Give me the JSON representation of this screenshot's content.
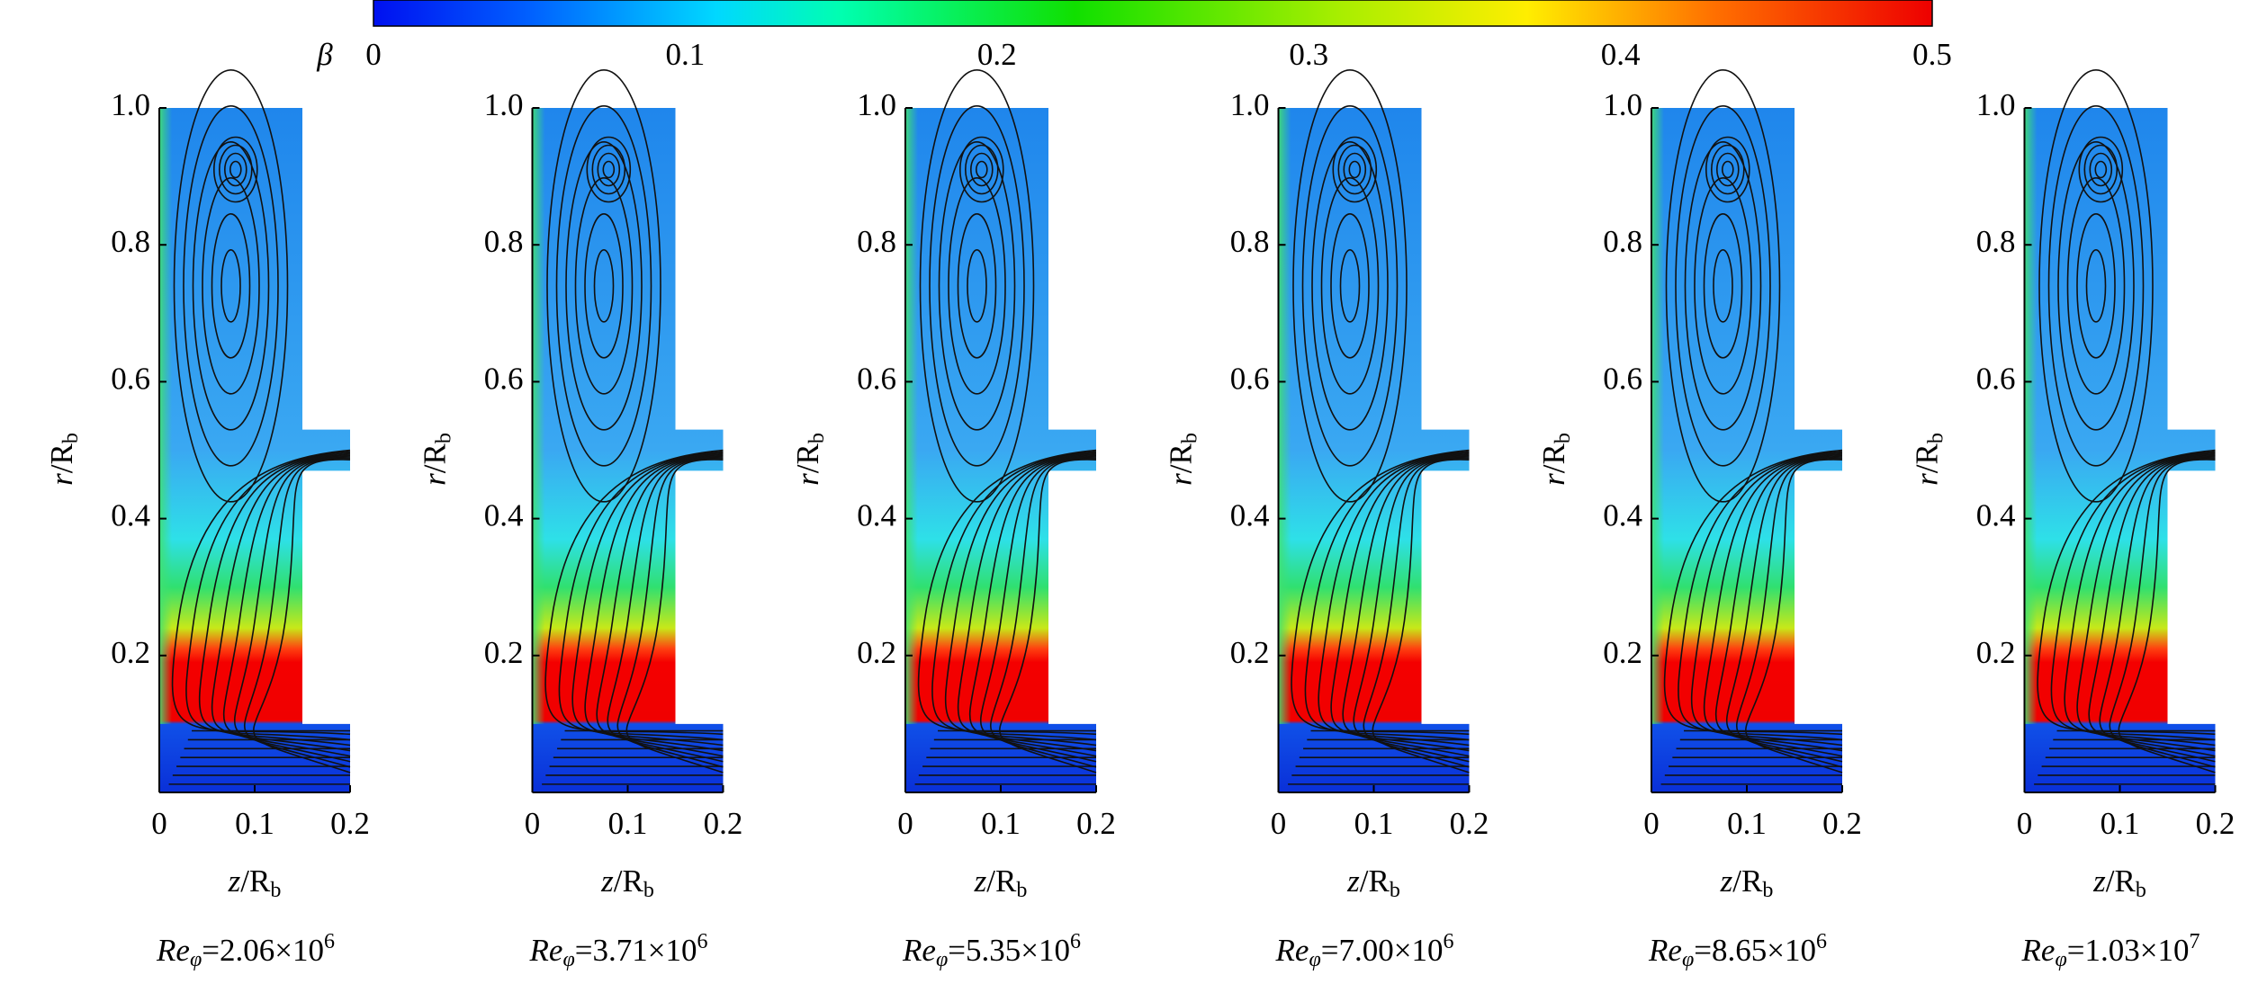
{
  "colorbar": {
    "label": "β",
    "lim": [
      0,
      0.5
    ],
    "ticks": [
      0,
      0.1,
      0.2,
      0.3,
      0.4,
      0.5
    ]
  },
  "chart_data": [
    {
      "type": "contour",
      "xlim": [
        0,
        0.2
      ],
      "ylim": [
        0,
        1
      ],
      "xticks": [
        0,
        0.1,
        0.2
      ],
      "yticks": [
        0.2,
        0.4,
        0.6,
        0.8,
        {
          "value": 1,
          "label": "1.0"
        }
      ],
      "xlabel": [
        "z",
        "/R",
        "b"
      ],
      "ylabel": [
        "r",
        "/R",
        "b"
      ],
      "caption": [
        "Re",
        "φ",
        "=2.06×10",
        "6"
      ]
    },
    {
      "type": "contour",
      "xlim": [
        0,
        0.2
      ],
      "ylim": [
        0,
        1
      ],
      "xticks": [
        0,
        0.1,
        0.2
      ],
      "yticks": [
        0.2,
        0.4,
        0.6,
        0.8,
        {
          "value": 1,
          "label": "1.0"
        }
      ],
      "xlabel": [
        "z",
        "/R",
        "b"
      ],
      "ylabel": [
        "r",
        "/R",
        "b"
      ],
      "caption": [
        "Re",
        "φ",
        "=3.71×10",
        "6"
      ]
    },
    {
      "type": "contour",
      "xlim": [
        0,
        0.2
      ],
      "ylim": [
        0,
        1
      ],
      "xticks": [
        0,
        0.1,
        0.2
      ],
      "yticks": [
        0.2,
        0.4,
        0.6,
        0.8,
        {
          "value": 1,
          "label": "1.0"
        }
      ],
      "xlabel": [
        "z",
        "/R",
        "b"
      ],
      "ylabel": [
        "r",
        "/R",
        "b"
      ],
      "caption": [
        "Re",
        "φ",
        "=5.35×10",
        "6"
      ]
    },
    {
      "type": "contour",
      "xlim": [
        0,
        0.2
      ],
      "ylim": [
        0,
        1
      ],
      "xticks": [
        0,
        0.1,
        0.2
      ],
      "yticks": [
        0.2,
        0.4,
        0.6,
        0.8,
        {
          "value": 1,
          "label": "1.0"
        }
      ],
      "xlabel": [
        "z",
        "/R",
        "b"
      ],
      "ylabel": [
        "r",
        "/R",
        "b"
      ],
      "caption": [
        "Re",
        "φ",
        "=7.00×10",
        "6"
      ]
    },
    {
      "type": "contour",
      "xlim": [
        0,
        0.2
      ],
      "ylim": [
        0,
        1
      ],
      "xticks": [
        0,
        0.1,
        0.2
      ],
      "yticks": [
        0.2,
        0.4,
        0.6,
        0.8,
        {
          "value": 1,
          "label": "1.0"
        }
      ],
      "xlabel": [
        "z",
        "/R",
        "b"
      ],
      "ylabel": [
        "r",
        "/R",
        "b"
      ],
      "caption": [
        "Re",
        "φ",
        "=8.65×10",
        "6"
      ]
    },
    {
      "type": "contour",
      "xlim": [
        0,
        0.2
      ],
      "ylim": [
        0,
        1
      ],
      "xticks": [
        0,
        0.1,
        0.2
      ],
      "yticks": [
        0.2,
        0.4,
        0.6,
        0.8,
        {
          "value": 1,
          "label": "1.0"
        }
      ],
      "xlabel": [
        "z",
        "/R",
        "b"
      ],
      "ylabel": [
        "r",
        "/R",
        "b"
      ],
      "caption": [
        "Re",
        "φ",
        "=1.03×10",
        "7"
      ]
    }
  ]
}
